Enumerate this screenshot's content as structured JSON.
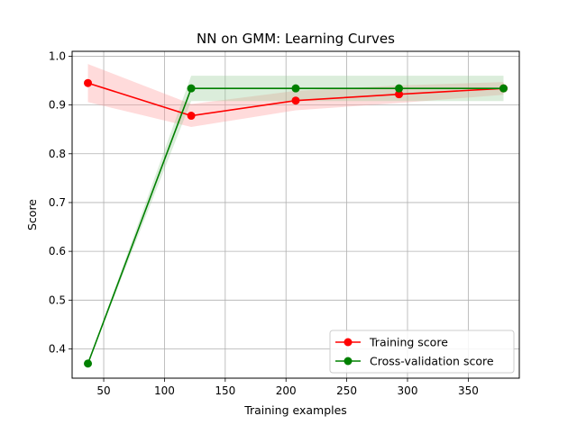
{
  "chart_data": {
    "type": "line",
    "title": "NN on GMM: Learning Curves",
    "xlabel": "Training examples",
    "ylabel": "Score",
    "xlim": [
      24,
      392
    ],
    "ylim": [
      0.34,
      1.01
    ],
    "xticks": [
      50,
      100,
      150,
      200,
      250,
      300,
      350
    ],
    "yticks": [
      0.4,
      0.5,
      0.6,
      0.7,
      0.8,
      0.9,
      1.0
    ],
    "ytick_labels": [
      "0.4",
      "0.5",
      "0.6",
      "0.7",
      "0.8",
      "0.9",
      "1.0"
    ],
    "grid": true,
    "legend_position": "lower-right",
    "x": [
      37,
      122,
      208,
      293,
      379
    ],
    "series": [
      {
        "name": "Training score",
        "color": "#ff0000",
        "fill_color": "#ff9999",
        "values": [
          0.945,
          0.878,
          0.909,
          0.922,
          0.934
        ],
        "band_upper": [
          0.984,
          0.902,
          0.929,
          0.94,
          0.947
        ],
        "band_lower": [
          0.906,
          0.855,
          0.889,
          0.904,
          0.921
        ]
      },
      {
        "name": "Cross-validation score",
        "color": "#008000",
        "fill_color": "#99cc99",
        "values": [
          0.37,
          0.934,
          0.934,
          0.934,
          0.934
        ],
        "band_upper": [
          0.37,
          0.96,
          0.96,
          0.96,
          0.96
        ],
        "band_lower": [
          0.37,
          0.908,
          0.908,
          0.908,
          0.908
        ]
      }
    ]
  }
}
